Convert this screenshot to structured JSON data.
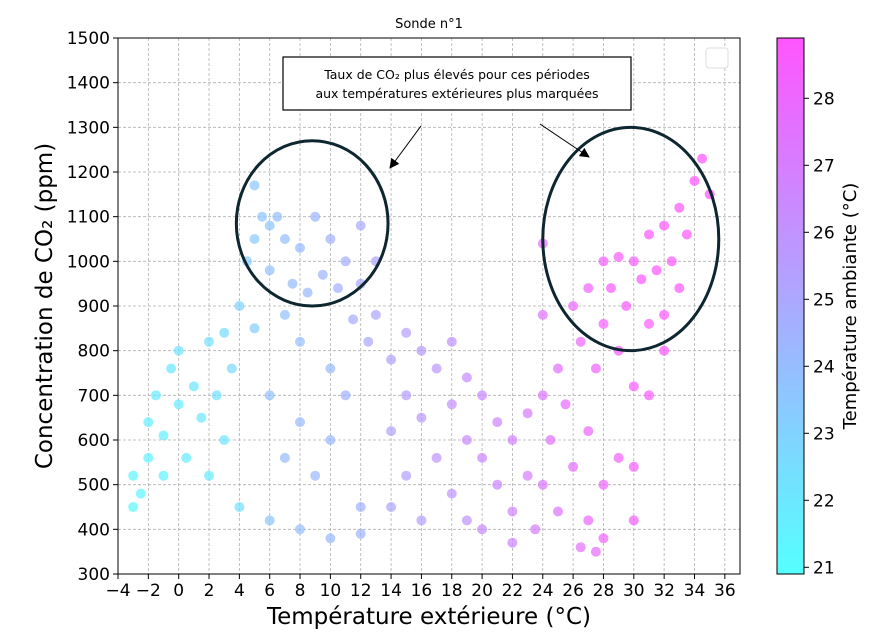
{
  "chart_data": {
    "type": "scatter",
    "title": "Sonde n°1",
    "xlabel": "Température extérieure (°C)",
    "ylabel": "Concentration de CO₂ (ppm)",
    "xlim": [
      -4,
      37
    ],
    "ylim": [
      300,
      1500
    ],
    "xticks": [
      -4,
      -2,
      0,
      2,
      4,
      6,
      8,
      10,
      12,
      14,
      16,
      18,
      20,
      22,
      24,
      26,
      28,
      30,
      32,
      34,
      36
    ],
    "xtick_labels": [
      "−4",
      "−2",
      "0",
      "2",
      "4",
      "6",
      "8",
      "10",
      "12",
      "14",
      "16",
      "18",
      "20",
      "22",
      "24",
      "26",
      "28",
      "30",
      "32",
      "34",
      "36"
    ],
    "yticks": [
      300,
      400,
      500,
      600,
      700,
      800,
      900,
      1000,
      1100,
      1200,
      1300,
      1400,
      1500
    ],
    "ytick_labels": [
      "300",
      "400",
      "500",
      "600",
      "700",
      "800",
      "900",
      "1000",
      "1100",
      "1200",
      "1300",
      "1400",
      "1500"
    ],
    "grid": true,
    "legend": "top-right (empty)",
    "colorbar": {
      "label": "Température ambiante (°C)",
      "range": [
        20.9,
        28.9
      ],
      "ticks": [
        21,
        22,
        23,
        24,
        25,
        26,
        27,
        28
      ],
      "tick_labels": [
        "21",
        "22",
        "23",
        "24",
        "25",
        "26",
        "27",
        "28"
      ],
      "colors": [
        "#55ffff",
        "#ff55ff"
      ]
    },
    "annotation": {
      "lines": [
        "Taux de CO₂ plus élevés pour ces périodes",
        "aux températures extérieures plus marquées"
      ],
      "arrow_targets": [
        [
          13.5,
          1200
        ],
        [
          26.5,
          1200
        ]
      ]
    },
    "highlight_ellipses": [
      {
        "center": [
          8.8,
          1085
        ],
        "rx_data": 5.0,
        "ry_data": 185
      },
      {
        "center": [
          29.8,
          1050
        ],
        "rx_data": 5.8,
        "ry_data": 250
      }
    ],
    "series": [
      {
        "points": [
          [
            -3,
            450,
            21.2
          ],
          [
            -3,
            520,
            21.3
          ],
          [
            -2.5,
            480,
            21.4
          ],
          [
            -2,
            560,
            21.5
          ],
          [
            -2,
            640,
            21.6
          ],
          [
            -1.5,
            700,
            21.8
          ],
          [
            -1,
            610,
            21.7
          ],
          [
            -1,
            520,
            21.5
          ],
          [
            -0.5,
            760,
            22.0
          ],
          [
            0,
            800,
            22.2
          ],
          [
            0,
            680,
            21.9
          ],
          [
            0.5,
            560,
            21.8
          ],
          [
            1,
            720,
            22.1
          ],
          [
            1.5,
            650,
            22.0
          ],
          [
            2,
            820,
            22.4
          ],
          [
            2,
            520,
            21.9
          ],
          [
            2.5,
            700,
            22.3
          ],
          [
            3,
            840,
            22.6
          ],
          [
            3,
            600,
            22.2
          ],
          [
            3.5,
            760,
            22.7
          ],
          [
            4,
            900,
            23.0
          ],
          [
            4,
            450,
            22.4
          ],
          [
            4.5,
            1000,
            23.3
          ],
          [
            5,
            1170,
            23.5
          ],
          [
            5,
            1050,
            23.4
          ],
          [
            5,
            850,
            23.2
          ],
          [
            5.5,
            1100,
            23.6
          ],
          [
            6,
            1080,
            23.6
          ],
          [
            6,
            980,
            23.7
          ],
          [
            6.5,
            1100,
            23.8
          ],
          [
            7,
            1050,
            23.9
          ],
          [
            7,
            880,
            23.8
          ],
          [
            7.5,
            950,
            24.0
          ],
          [
            8,
            1030,
            24.1
          ],
          [
            8,
            820,
            23.9
          ],
          [
            8.5,
            930,
            24.2
          ],
          [
            9,
            1100,
            24.3
          ],
          [
            9.5,
            970,
            24.4
          ],
          [
            10,
            1050,
            24.5
          ],
          [
            10,
            760,
            24.2
          ],
          [
            10.5,
            940,
            24.6
          ],
          [
            11,
            1000,
            24.7
          ],
          [
            11.5,
            870,
            24.8
          ],
          [
            12,
            1080,
            24.9
          ],
          [
            12,
            950,
            25.0
          ],
          [
            12.5,
            820,
            25.0
          ],
          [
            13,
            1000,
            25.2
          ],
          [
            13,
            880,
            25.1
          ],
          [
            6,
            700,
            23.8
          ],
          [
            7,
            560,
            24.0
          ],
          [
            8,
            640,
            24.1
          ],
          [
            9,
            520,
            24.2
          ],
          [
            10,
            600,
            24.3
          ],
          [
            11,
            700,
            24.5
          ],
          [
            12,
            450,
            24.6
          ],
          [
            6,
            420,
            23.6
          ],
          [
            8,
            400,
            23.9
          ],
          [
            10,
            380,
            24.1
          ],
          [
            12,
            390,
            24.4
          ],
          [
            14,
            780,
            25.3
          ],
          [
            14,
            620,
            25.2
          ],
          [
            14,
            450,
            25.0
          ],
          [
            15,
            840,
            25.4
          ],
          [
            15,
            700,
            25.5
          ],
          [
            15,
            520,
            25.3
          ],
          [
            16,
            800,
            25.6
          ],
          [
            16,
            650,
            25.7
          ],
          [
            16,
            420,
            25.4
          ],
          [
            17,
            760,
            25.8
          ],
          [
            17,
            560,
            25.9
          ],
          [
            18,
            820,
            26.0
          ],
          [
            18,
            680,
            26.1
          ],
          [
            18,
            480,
            25.9
          ],
          [
            19,
            740,
            26.2
          ],
          [
            19,
            600,
            26.3
          ],
          [
            19,
            420,
            26.0
          ],
          [
            20,
            700,
            26.4
          ],
          [
            20,
            560,
            26.5
          ],
          [
            20,
            400,
            26.2
          ],
          [
            21,
            640,
            26.6
          ],
          [
            21,
            500,
            26.5
          ],
          [
            22,
            600,
            26.8
          ],
          [
            22,
            440,
            26.7
          ],
          [
            22,
            370,
            26.5
          ],
          [
            23,
            660,
            27.0
          ],
          [
            23,
            520,
            26.9
          ],
          [
            24,
            1040,
            27.6
          ],
          [
            24,
            880,
            27.5
          ],
          [
            24,
            700,
            27.3
          ],
          [
            24,
            500,
            27.2
          ],
          [
            24.5,
            600,
            27.4
          ],
          [
            25,
            760,
            27.6
          ],
          [
            25,
            440,
            27.4
          ],
          [
            25.5,
            680,
            27.7
          ],
          [
            26,
            900,
            27.9
          ],
          [
            26,
            540,
            27.7
          ],
          [
            26.5,
            820,
            28.0
          ],
          [
            27,
            940,
            28.2
          ],
          [
            27,
            620,
            28.0
          ],
          [
            27,
            420,
            27.9
          ],
          [
            27.5,
            760,
            28.2
          ],
          [
            28,
            1000,
            28.4
          ],
          [
            28,
            860,
            28.3
          ],
          [
            28,
            500,
            28.1
          ],
          [
            28.5,
            940,
            28.5
          ],
          [
            29,
            1010,
            28.5
          ],
          [
            29,
            800,
            28.4
          ],
          [
            29.5,
            900,
            28.6
          ],
          [
            30,
            1000,
            28.6
          ],
          [
            30,
            720,
            28.5
          ],
          [
            30,
            540,
            28.4
          ],
          [
            30.5,
            960,
            28.7
          ],
          [
            31,
            1060,
            28.7
          ],
          [
            31,
            860,
            28.6
          ],
          [
            31.5,
            980,
            28.8
          ],
          [
            32,
            1080,
            28.8
          ],
          [
            32,
            880,
            28.7
          ],
          [
            32.5,
            1000,
            28.8
          ],
          [
            33,
            1120,
            28.8
          ],
          [
            33,
            940,
            28.8
          ],
          [
            33.5,
            1060,
            28.8
          ],
          [
            34,
            1180,
            28.9
          ],
          [
            34.5,
            1230,
            28.9
          ],
          [
            35,
            1150,
            28.9
          ],
          [
            31,
            700,
            28.6
          ],
          [
            32,
            800,
            28.7
          ],
          [
            30,
            420,
            28.4
          ],
          [
            29,
            560,
            28.3
          ],
          [
            28,
            380,
            28.1
          ],
          [
            27.5,
            350,
            27.8
          ],
          [
            26.5,
            360,
            27.6
          ],
          [
            23.5,
            400,
            26.9
          ]
        ]
      }
    ]
  }
}
